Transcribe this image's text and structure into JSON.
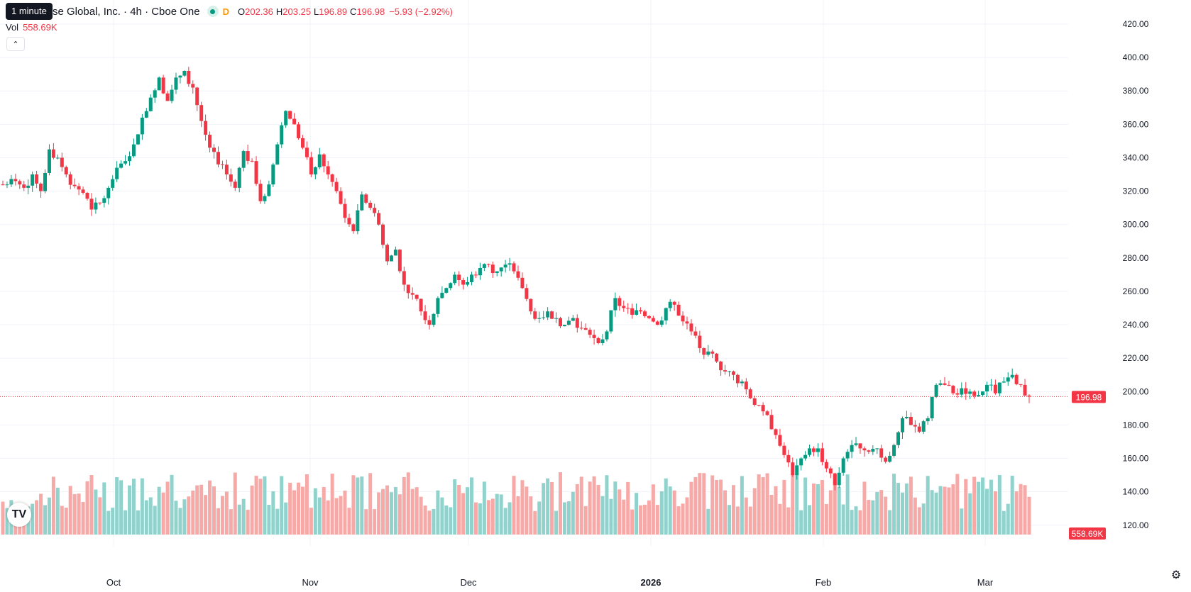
{
  "header": {
    "title": "se Global, Inc. · 4h · Cboe One",
    "interval_tooltip": "1 minute",
    "badge": "D",
    "ohlc": {
      "o_label": "O",
      "o": "202.36",
      "h_label": "H",
      "h": "203.25",
      "l_label": "L",
      "l": "196.89",
      "c_label": "C",
      "c": "196.98",
      "change": "−5.93 (−2.92%)"
    },
    "vol_label": "Vol",
    "vol_value": "558.69K",
    "collapse_icon": "chevron-up-icon"
  },
  "price_tag": "196.98",
  "volume_tag": "558.69K",
  "logo_text": "TV",
  "colors": {
    "up": "#089981",
    "down": "#f23645",
    "vol_up": "#92d2cc",
    "vol_down": "#f7a9a7",
    "grid": "#f0f3fa"
  },
  "chart_data": {
    "type": "candlestick",
    "y_axis": {
      "ticks": [
        120,
        140,
        160,
        180,
        200,
        220,
        240,
        260,
        280,
        300,
        320,
        340,
        360,
        380,
        400,
        420
      ],
      "range": [
        112,
        428
      ]
    },
    "x_axis": {
      "labels": [
        "Oct",
        "Nov",
        "Dec",
        "2026",
        "Feb",
        "Mar"
      ],
      "bold": [
        "2026"
      ]
    },
    "current_price": 196.98,
    "daily_closes": [
      [
        "Sep 22",
        324
      ],
      [
        "Sep 23",
        326
      ],
      [
        "Sep 24",
        322
      ],
      [
        "Sep 25",
        330
      ],
      [
        "Sep 26",
        320
      ],
      [
        "Sep 29",
        345
      ],
      [
        "Sep 30",
        340
      ],
      [
        "Oct 1",
        330
      ],
      [
        "Oct 2",
        323
      ],
      [
        "Oct 3",
        319
      ],
      [
        "Oct 6",
        309
      ],
      [
        "Oct 7",
        313
      ],
      [
        "Oct 8",
        322
      ],
      [
        "Oct 9",
        334
      ],
      [
        "Oct 10",
        338
      ],
      [
        "Oct 13",
        348
      ],
      [
        "Oct 14",
        364
      ],
      [
        "Oct 15",
        376
      ],
      [
        "Oct 16",
        388
      ],
      [
        "Oct 17",
        374
      ],
      [
        "Oct 20",
        388
      ],
      [
        "Oct 21",
        392
      ],
      [
        "Oct 22",
        382
      ],
      [
        "Oct 23",
        362
      ],
      [
        "Oct 24",
        346
      ],
      [
        "Oct 27",
        336
      ],
      [
        "Oct 28",
        330
      ],
      [
        "Oct 29",
        322
      ],
      [
        "Oct 30",
        344
      ],
      [
        "Oct 31",
        338
      ],
      [
        "Nov 3",
        314
      ],
      [
        "Nov 4",
        324
      ],
      [
        "Nov 5",
        348
      ],
      [
        "Nov 6",
        368
      ],
      [
        "Nov 7",
        360
      ],
      [
        "Nov 10",
        346
      ],
      [
        "Nov 11",
        330
      ],
      [
        "Nov 12",
        342
      ],
      [
        "Nov 13",
        330
      ],
      [
        "Nov 14",
        320
      ],
      [
        "Nov 17",
        304
      ],
      [
        "Nov 18",
        296
      ],
      [
        "Nov 19",
        318
      ],
      [
        "Nov 20",
        310
      ],
      [
        "Nov 21",
        300
      ],
      [
        "Nov 24",
        278
      ],
      [
        "Nov 25",
        285
      ],
      [
        "Nov 26",
        264
      ],
      [
        "Nov 28",
        258
      ],
      [
        "Dec 1",
        248
      ],
      [
        "Dec 2",
        240
      ],
      [
        "Dec 3",
        256
      ],
      [
        "Dec 4",
        262
      ],
      [
        "Dec 5",
        270
      ],
      [
        "Dec 8",
        264
      ],
      [
        "Dec 9",
        270
      ],
      [
        "Dec 10",
        274
      ],
      [
        "Dec 11",
        276
      ],
      [
        "Dec 12",
        272
      ],
      [
        "Dec 15",
        276
      ],
      [
        "Dec 16",
        272
      ],
      [
        "Dec 17",
        262
      ],
      [
        "Dec 18",
        248
      ],
      [
        "Dec 19",
        244
      ],
      [
        "Dec 22",
        248
      ],
      [
        "Dec 23",
        244
      ],
      [
        "Dec 24",
        240
      ],
      [
        "Dec 26",
        244
      ],
      [
        "Dec 29",
        238
      ],
      [
        "Dec 30",
        234
      ],
      [
        "Dec 31",
        229
      ],
      [
        "Jan 2",
        236
      ],
      [
        "Jan 5",
        256
      ],
      [
        "Jan 6",
        250
      ],
      [
        "Jan 7",
        246
      ],
      [
        "Jan 8",
        248
      ],
      [
        "Jan 9",
        244
      ],
      [
        "Jan 12",
        240
      ],
      [
        "Jan 13",
        250
      ],
      [
        "Jan 14",
        252
      ],
      [
        "Jan 15",
        242
      ],
      [
        "Jan 16",
        236
      ],
      [
        "Jan 20",
        226
      ],
      [
        "Jan 21",
        224
      ],
      [
        "Jan 22",
        218
      ],
      [
        "Jan 23",
        212
      ],
      [
        "Jan 26",
        210
      ],
      [
        "Jan 27",
        206
      ],
      [
        "Jan 28",
        196
      ],
      [
        "Jan 29",
        192
      ],
      [
        "Jan 30",
        186
      ],
      [
        "Feb 2",
        174
      ],
      [
        "Feb 3",
        162
      ],
      [
        "Feb 4",
        150
      ],
      [
        "Feb 5",
        160
      ],
      [
        "Feb 6",
        166
      ],
      [
        "Feb 9",
        166
      ],
      [
        "Feb 10",
        154
      ],
      [
        "Feb 11",
        144
      ],
      [
        "Feb 12",
        160
      ],
      [
        "Feb 13",
        168
      ],
      [
        "Feb 17",
        166
      ],
      [
        "Feb 18",
        164
      ],
      [
        "Feb 19",
        166
      ],
      [
        "Feb 20",
        158
      ],
      [
        "Feb 23",
        168
      ],
      [
        "Feb 24",
        184
      ],
      [
        "Feb 25",
        180
      ],
      [
        "Feb 26",
        176
      ],
      [
        "Feb 27",
        184
      ],
      [
        "Mar 2",
        204
      ],
      [
        "Mar 3",
        204
      ],
      [
        "Mar 4",
        199
      ],
      [
        "Mar 5",
        202
      ],
      [
        "Mar 6",
        200
      ],
      [
        "Mar 9",
        198
      ],
      [
        "Mar 10",
        204
      ],
      [
        "Mar 11",
        199
      ],
      [
        "Mar 12",
        206
      ],
      [
        "Mar 13",
        210
      ],
      [
        "Mar 16",
        204
      ],
      [
        "Mar 17",
        197
      ]
    ]
  }
}
